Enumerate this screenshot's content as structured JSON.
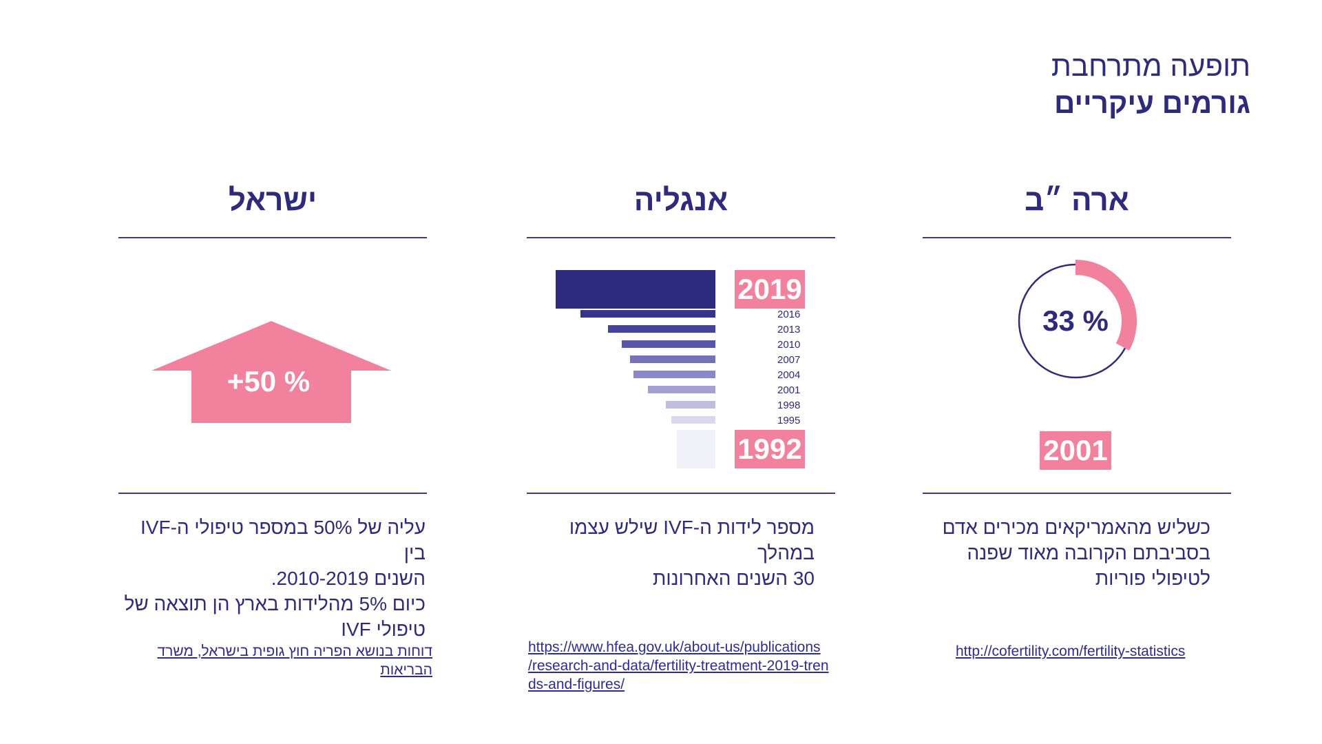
{
  "header": {
    "subtitle": "תופעה מתרחבת",
    "title": "גורמים עיקריים"
  },
  "colors": {
    "navy": "#2e2a7d",
    "pink": "#f2819e"
  },
  "columns": {
    "usa": {
      "heading": "ארה ״ב",
      "donut_value": "33 %",
      "donut_fraction": 0.33,
      "year": "2001",
      "description": [
        "כשליש מהאמריקאים מכירים אדם",
        "בסביבתם הקרובה מאוד שפנה",
        "לטיפולי פוריות"
      ],
      "source": "http://cofertility.com/fertility-statistics"
    },
    "uk": {
      "heading": "אנגליה",
      "year_top": "2019",
      "year_bottom": "1992",
      "years": [
        "2016",
        "2013",
        "2010",
        "2007",
        "2004",
        "2001",
        "1998",
        "1995"
      ],
      "description": [
        "מספר לידות ה-IVF שילש עצמו במהלך",
        "30 השנים האחרונות"
      ],
      "source": [
        "https://www.hfea.gov.uk/about-us/publications",
        "/research-and-data/fertility-treatment-2019-tren",
        "ds-and-figures/"
      ]
    },
    "israel": {
      "heading": "ישראל",
      "arrow_label": "+50 %",
      "description": [
        "עליה של 50% במספר טיפולי ה-IVF בין",
        "השנים 2010-2019.",
        "כיום 5% מהלידות בארץ הן תוצאה של",
        "טיפולי IVF"
      ],
      "source": "דוחות בנושא הפריה חוץ גופית בישראל, משרד הבריאות"
    }
  }
}
